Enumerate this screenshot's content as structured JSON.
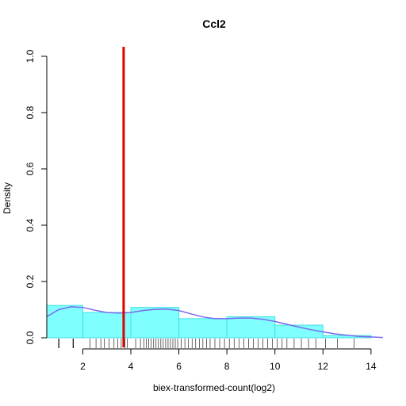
{
  "chart_data": {
    "type": "histogram",
    "title": "Ccl2",
    "xlabel": "biex-transformed-count(log2)",
    "ylabel": "Density",
    "xlim": [
      0.5,
      14.5
    ],
    "ylim": [
      0,
      1.0
    ],
    "x_ticks": [
      2,
      4,
      6,
      8,
      10,
      12,
      14
    ],
    "y_ticks": [
      0.0,
      0.2,
      0.4,
      0.6,
      0.8,
      1.0
    ],
    "x_tick_labels": [
      "2",
      "4",
      "6",
      "8",
      "10",
      "12",
      "14"
    ],
    "y_tick_labels": [
      "0.0",
      "0.2",
      "0.4",
      "0.6",
      "0.8",
      "1.0"
    ],
    "bins": [
      {
        "x0": 0.0,
        "x1": 2.0,
        "density": 0.115
      },
      {
        "x0": 2.0,
        "x1": 4.0,
        "density": 0.09
      },
      {
        "x0": 4.0,
        "x1": 6.0,
        "density": 0.108
      },
      {
        "x0": 6.0,
        "x1": 8.0,
        "density": 0.068
      },
      {
        "x0": 8.0,
        "x1": 10.0,
        "density": 0.075
      },
      {
        "x0": 10.0,
        "x1": 12.0,
        "density": 0.045
      },
      {
        "x0": 12.0,
        "x1": 14.0,
        "density": 0.008
      }
    ],
    "density_curve": {
      "x": [
        0.5,
        1.0,
        1.5,
        2.0,
        2.5,
        3.0,
        3.5,
        4.0,
        4.5,
        5.0,
        5.5,
        6.0,
        6.5,
        7.0,
        7.5,
        8.0,
        8.5,
        9.0,
        9.5,
        10.0,
        10.5,
        11.0,
        11.5,
        12.0,
        12.5,
        13.0,
        13.5,
        14.0,
        14.5
      ],
      "y": [
        0.075,
        0.1,
        0.11,
        0.108,
        0.098,
        0.09,
        0.088,
        0.09,
        0.097,
        0.101,
        0.102,
        0.097,
        0.085,
        0.074,
        0.068,
        0.068,
        0.07,
        0.07,
        0.066,
        0.058,
        0.048,
        0.038,
        0.029,
        0.021,
        0.014,
        0.009,
        0.005,
        0.003,
        0.001
      ]
    },
    "vline": 3.7,
    "rug": [
      1.0,
      1.6,
      2.3,
      2.55,
      2.75,
      2.9,
      3.1,
      3.3,
      3.45,
      3.6,
      3.75,
      3.85,
      4.2,
      4.4,
      4.55,
      4.65,
      4.75,
      4.85,
      4.95,
      5.05,
      5.15,
      5.25,
      5.35,
      5.45,
      5.55,
      5.65,
      5.75,
      5.85,
      5.95,
      6.1,
      6.25,
      6.4,
      6.55,
      6.7,
      6.85,
      7.0,
      7.15,
      7.3,
      7.5,
      7.7,
      7.9,
      8.1,
      8.3,
      8.5,
      8.7,
      8.9,
      9.1,
      9.3,
      9.5,
      9.7,
      9.9,
      10.1,
      10.3,
      10.5,
      10.8,
      11.1,
      11.4,
      11.7,
      12.1,
      12.6,
      13.3
    ],
    "colors": {
      "bar_fill": "#80ffff",
      "bar_stroke": "#40e0e0",
      "curve": "#7b68ee",
      "vline": "#e00000",
      "axis": "#000000"
    },
    "grid": false,
    "legend": "none"
  }
}
